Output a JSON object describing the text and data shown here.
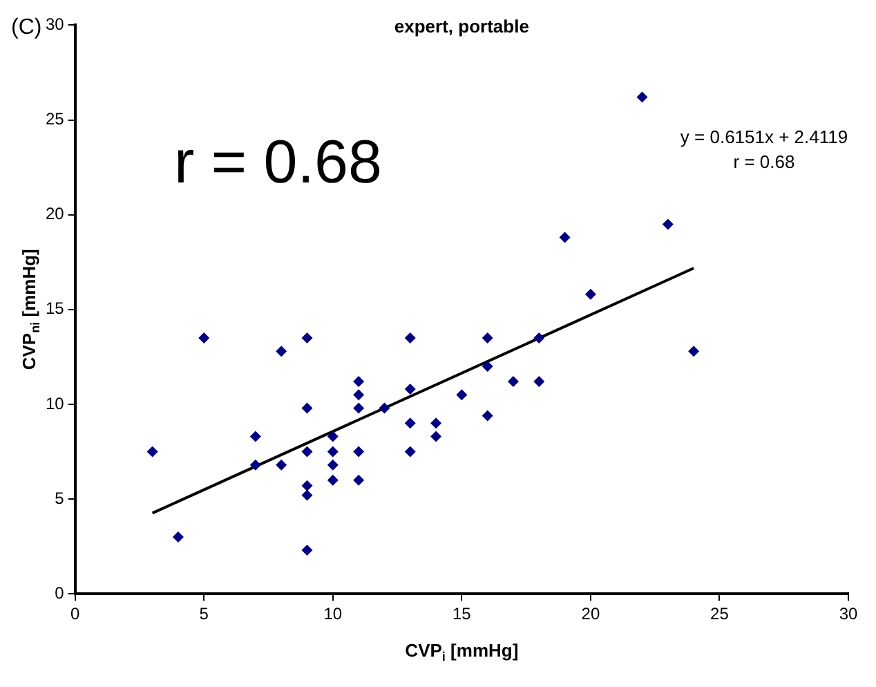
{
  "chart_data": {
    "type": "scatter",
    "title": "expert, portable",
    "xlabel": "CVP$_{i}$ [mmHg]",
    "ylabel": "CVP$_{ni}$ [mmHg]",
    "xlim": [
      0,
      30
    ],
    "xticks": [
      0,
      5,
      10,
      15,
      20,
      25,
      30
    ],
    "ylim": [
      0,
      30
    ],
    "yticks": [
      0,
      5,
      10,
      15,
      20,
      25,
      30
    ],
    "annotations": [
      "(C)",
      "r = 0.68",
      "y = 0.6151x + 2.4119",
      "r = 0.68"
    ],
    "series": [
      {
        "marker": "diamond",
        "color": "#000080",
        "x": [
          3,
          4,
          5,
          7,
          7,
          8,
          8,
          9,
          9,
          9,
          9,
          9,
          9,
          10,
          10,
          10,
          10,
          11,
          11,
          11,
          11,
          11,
          12,
          13,
          13,
          13,
          13,
          14,
          14,
          15,
          16,
          16,
          16,
          17,
          18,
          18,
          19,
          20,
          22,
          23,
          24
        ],
        "values": [
          7.5,
          3,
          13.5,
          8.3,
          6.8,
          12.8,
          6.8,
          13.5,
          9.8,
          7.5,
          5.7,
          5.2,
          2.3,
          8.3,
          7.5,
          6.8,
          6,
          11.2,
          10.5,
          9.8,
          7.5,
          6,
          9.8,
          13.5,
          10.8,
          9,
          7.5,
          9,
          8.3,
          10.5,
          13.5,
          12,
          9.4,
          11.2,
          13.5,
          11.2,
          18.8,
          15.8,
          26.2,
          19.5,
          12.8
        ]
      },
      {
        "type": "line",
        "marker": "none",
        "color": "#000000",
        "x": [
          3,
          24
        ],
        "values": [
          4.26,
          17.18
        ]
      }
    ]
  }
}
